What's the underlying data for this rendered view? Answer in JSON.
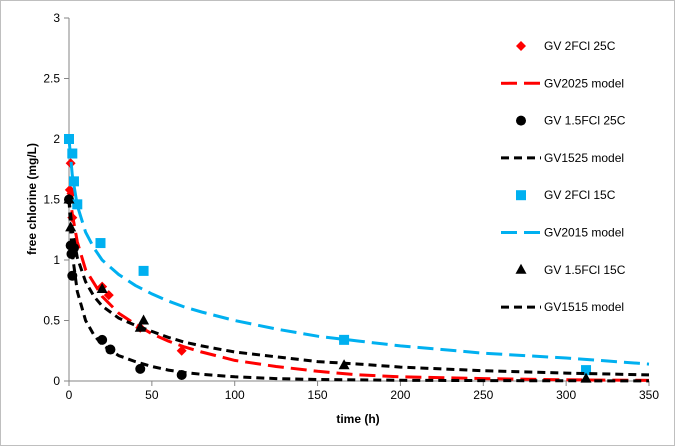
{
  "chart_data": {
    "type": "scatter",
    "title": "",
    "xlabel": "time (h)",
    "ylabel": "free chlorine (mg/L)",
    "xlim": [
      0,
      350
    ],
    "ylim": [
      0,
      3
    ],
    "xticks": [
      0,
      50,
      100,
      150,
      200,
      250,
      300,
      350
    ],
    "yticks": [
      0,
      0.5,
      1,
      1.5,
      2,
      2.5,
      3
    ],
    "ytick_labels": [
      "0",
      "0.5",
      "1",
      "1.5",
      "2",
      "2.5",
      "3"
    ],
    "grid": false,
    "legend_position": "right",
    "series": [
      {
        "name": "GV 2FCl 25C",
        "kind": "points",
        "marker": "diamond",
        "color": "#ff0000",
        "x": [
          0.5,
          1,
          1.5,
          2,
          2.5,
          20,
          24,
          43,
          68
        ],
        "y": [
          1.58,
          1.8,
          1.55,
          1.35,
          1.1,
          0.78,
          0.71,
          0.44,
          0.25
        ]
      },
      {
        "name": "GV2025 model",
        "kind": "line",
        "color": "#ff0000",
        "dash": "long",
        "x": [
          0,
          1,
          2,
          5,
          10,
          20,
          30,
          40,
          50,
          60,
          70,
          80,
          100,
          125,
          150,
          175,
          200,
          250,
          300,
          350
        ],
        "y": [
          1.6,
          1.48,
          1.38,
          1.15,
          0.92,
          0.7,
          0.56,
          0.47,
          0.39,
          0.33,
          0.28,
          0.24,
          0.17,
          0.12,
          0.08,
          0.05,
          0.035,
          0.02,
          0.01,
          0.005
        ]
      },
      {
        "name": "GV 1.5FCl 25C",
        "kind": "points",
        "marker": "circle",
        "color": "#000000",
        "x": [
          0,
          1,
          1.5,
          2,
          3,
          20,
          25,
          43,
          68
        ],
        "y": [
          1.5,
          1.12,
          1.05,
          0.87,
          1.1,
          0.34,
          0.26,
          0.1,
          0.05
        ]
      },
      {
        "name": "GV1525 model",
        "kind": "line",
        "color": "#000000",
        "dash": "short",
        "x": [
          0,
          1,
          2,
          5,
          10,
          15,
          20,
          30,
          40,
          50,
          60,
          70,
          80,
          100,
          125,
          150,
          200,
          250,
          300,
          350
        ],
        "y": [
          1.5,
          1.25,
          1.05,
          0.74,
          0.5,
          0.38,
          0.3,
          0.21,
          0.16,
          0.12,
          0.09,
          0.07,
          0.055,
          0.035,
          0.02,
          0.012,
          0.006,
          0.003,
          0.002,
          0.001
        ]
      },
      {
        "name": "GV 2FCl 15C",
        "kind": "points",
        "marker": "square",
        "color": "#00b0f0",
        "x": [
          0,
          2,
          3,
          5,
          19,
          45,
          166,
          312
        ],
        "y": [
          2.0,
          1.88,
          1.65,
          1.46,
          1.14,
          0.91,
          0.34,
          0.09
        ]
      },
      {
        "name": "GV2015 model",
        "kind": "line",
        "color": "#00b0f0",
        "dash": "long",
        "x": [
          0,
          2,
          5,
          10,
          15,
          20,
          30,
          40,
          50,
          60,
          70,
          80,
          100,
          125,
          150,
          175,
          200,
          225,
          250,
          275,
          300,
          325,
          350
        ],
        "y": [
          2.0,
          1.7,
          1.45,
          1.23,
          1.1,
          1.0,
          0.88,
          0.79,
          0.72,
          0.66,
          0.61,
          0.57,
          0.5,
          0.43,
          0.37,
          0.33,
          0.29,
          0.26,
          0.23,
          0.21,
          0.19,
          0.165,
          0.14
        ]
      },
      {
        "name": "GV 1.5FCl 15C",
        "kind": "points",
        "marker": "triangle",
        "color": "#000000",
        "x": [
          0,
          1,
          2,
          20,
          43,
          45,
          166,
          312
        ],
        "y": [
          1.5,
          1.27,
          1.13,
          0.76,
          0.44,
          0.5,
          0.13,
          0.02
        ]
      },
      {
        "name": "GV1515 model",
        "kind": "line",
        "color": "#000000",
        "dash": "short",
        "x": [
          0,
          2,
          5,
          10,
          15,
          20,
          30,
          40,
          50,
          60,
          70,
          80,
          100,
          125,
          150,
          175,
          200,
          250,
          300,
          350
        ],
        "y": [
          1.5,
          1.25,
          1.02,
          0.82,
          0.7,
          0.62,
          0.52,
          0.46,
          0.41,
          0.36,
          0.32,
          0.29,
          0.24,
          0.2,
          0.16,
          0.14,
          0.115,
          0.085,
          0.065,
          0.05
        ]
      }
    ]
  }
}
